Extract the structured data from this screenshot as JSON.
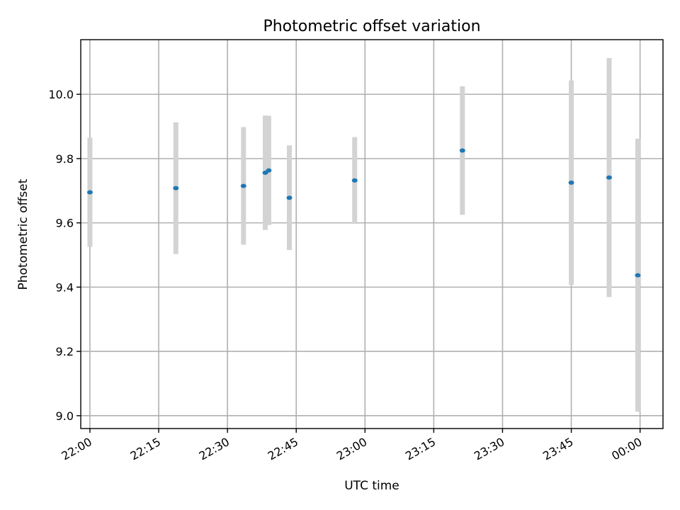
{
  "chart_data": {
    "type": "scatter",
    "title": "Photometric offset variation",
    "xlabel": "UTC time",
    "ylabel": "Photometric offset",
    "xlim": [
      "21:58:00",
      "00:05:00"
    ],
    "ylim": [
      8.96,
      10.17
    ],
    "x_ticks": [
      "22:00",
      "22:15",
      "22:30",
      "22:45",
      "23:00",
      "23:15",
      "23:30",
      "23:45",
      "00:00"
    ],
    "y_ticks": [
      9.0,
      9.2,
      9.4,
      9.6,
      9.8,
      10.0
    ],
    "grid": true,
    "series": [
      {
        "marker_color": "#1f77b4",
        "errorbar_color": "#d3d3d3",
        "points": [
          {
            "x": "22:00:00",
            "y": 9.695,
            "err": 0.17
          },
          {
            "x": "22:18:45",
            "y": 9.708,
            "err": 0.205
          },
          {
            "x": "22:33:30",
            "y": 9.715,
            "err": 0.183
          },
          {
            "x": "22:38:15",
            "y": 9.756,
            "err": 0.178
          },
          {
            "x": "22:39:00",
            "y": 9.763,
            "err": 0.17
          },
          {
            "x": "22:43:30",
            "y": 9.678,
            "err": 0.163
          },
          {
            "x": "22:57:45",
            "y": 9.732,
            "err": 0.135
          },
          {
            "x": "23:21:15",
            "y": 9.825,
            "err": 0.2
          },
          {
            "x": "23:45:00",
            "y": 9.725,
            "err": 0.318
          },
          {
            "x": "23:53:15",
            "y": 9.741,
            "err": 0.372
          },
          {
            "x": "23:59:30",
            "y": 9.437,
            "err": 0.425
          }
        ]
      }
    ]
  }
}
